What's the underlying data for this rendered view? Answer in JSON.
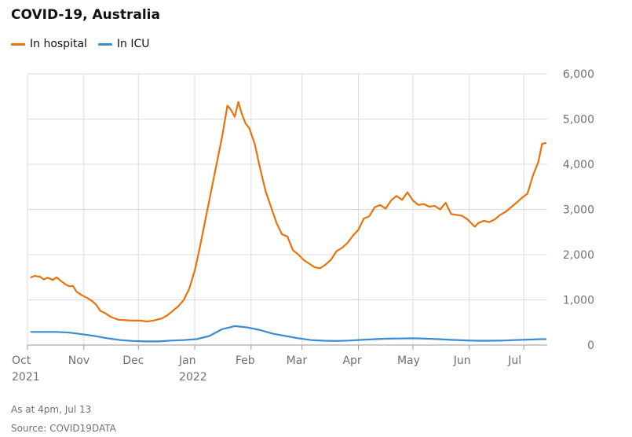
{
  "title": "COVID-19, Australia",
  "legend": [
    {
      "label": "In hospital",
      "color": "#e8730c"
    },
    {
      "label": "In ICU",
      "color": "#3a8ad4"
    }
  ],
  "footnote": "As at 4pm, Jul 13",
  "source": "Source: COVID19DATA",
  "chart_data": {
    "type": "line",
    "title": "COVID-19, Australia",
    "xlabel": "",
    "ylabel": "",
    "x_range": [
      "2021-10-01",
      "2022-07-13"
    ],
    "ylim": [
      0,
      6000
    ],
    "y_ticks": [
      0,
      1000,
      2000,
      3000,
      4000,
      5000,
      6000
    ],
    "y_tick_labels": [
      "0",
      "1,000",
      "2,000",
      "3,000",
      "4,000",
      "5,000",
      "6,000"
    ],
    "y_axis_side": "right",
    "grid": true,
    "legend_position": "top-left",
    "x_ticks": [
      {
        "date": "2021-10-01",
        "label": "Oct",
        "year": "2021"
      },
      {
        "date": "2021-11-01",
        "label": "Nov",
        "year": ""
      },
      {
        "date": "2021-12-01",
        "label": "Dec",
        "year": ""
      },
      {
        "date": "2022-01-01",
        "label": "Jan",
        "year": "2022"
      },
      {
        "date": "2022-02-01",
        "label": "Feb",
        "year": ""
      },
      {
        "date": "2022-03-01",
        "label": "Mar",
        "year": ""
      },
      {
        "date": "2022-04-01",
        "label": "Apr",
        "year": ""
      },
      {
        "date": "2022-05-01",
        "label": "May",
        "year": ""
      },
      {
        "date": "2022-06-01",
        "label": "Jun",
        "year": ""
      },
      {
        "date": "2022-07-01",
        "label": "Jul",
        "year": ""
      }
    ],
    "series": [
      {
        "name": "In hospital",
        "color": "#e8730c",
        "points": [
          [
            "2021-10-03",
            1500
          ],
          [
            "2021-10-05",
            1530
          ],
          [
            "2021-10-08",
            1510
          ],
          [
            "2021-10-10",
            1450
          ],
          [
            "2021-10-12",
            1490
          ],
          [
            "2021-10-15",
            1440
          ],
          [
            "2021-10-17",
            1500
          ],
          [
            "2021-10-19",
            1430
          ],
          [
            "2021-10-22",
            1340
          ],
          [
            "2021-10-24",
            1300
          ],
          [
            "2021-10-26",
            1310
          ],
          [
            "2021-10-28",
            1180
          ],
          [
            "2021-10-31",
            1100
          ],
          [
            "2021-11-03",
            1040
          ],
          [
            "2021-11-06",
            960
          ],
          [
            "2021-11-08",
            880
          ],
          [
            "2021-11-10",
            760
          ],
          [
            "2021-11-13",
            700
          ],
          [
            "2021-11-16",
            620
          ],
          [
            "2021-11-20",
            560
          ],
          [
            "2021-11-24",
            550
          ],
          [
            "2021-11-28",
            540
          ],
          [
            "2021-12-02",
            540
          ],
          [
            "2021-12-06",
            520
          ],
          [
            "2021-12-10",
            550
          ],
          [
            "2021-12-14",
            590
          ],
          [
            "2021-12-17",
            660
          ],
          [
            "2021-12-20",
            760
          ],
          [
            "2021-12-23",
            860
          ],
          [
            "2021-12-26",
            1000
          ],
          [
            "2021-12-29",
            1250
          ],
          [
            "2022-01-01",
            1650
          ],
          [
            "2022-01-04",
            2200
          ],
          [
            "2022-01-07",
            2800
          ],
          [
            "2022-01-10",
            3400
          ],
          [
            "2022-01-13",
            4000
          ],
          [
            "2022-01-16",
            4600
          ],
          [
            "2022-01-19",
            5300
          ],
          [
            "2022-01-21",
            5200
          ],
          [
            "2022-01-23",
            5050
          ],
          [
            "2022-01-25",
            5380
          ],
          [
            "2022-01-27",
            5100
          ],
          [
            "2022-01-29",
            4900
          ],
          [
            "2022-01-31",
            4800
          ],
          [
            "2022-02-03",
            4450
          ],
          [
            "2022-02-06",
            3900
          ],
          [
            "2022-02-09",
            3400
          ],
          [
            "2022-02-12",
            3050
          ],
          [
            "2022-02-15",
            2700
          ],
          [
            "2022-02-18",
            2450
          ],
          [
            "2022-02-21",
            2400
          ],
          [
            "2022-02-24",
            2100
          ],
          [
            "2022-02-27",
            2000
          ],
          [
            "2022-03-02",
            1880
          ],
          [
            "2022-03-05",
            1800
          ],
          [
            "2022-03-08",
            1720
          ],
          [
            "2022-03-11",
            1700
          ],
          [
            "2022-03-14",
            1780
          ],
          [
            "2022-03-17",
            1890
          ],
          [
            "2022-03-20",
            2080
          ],
          [
            "2022-03-23",
            2150
          ],
          [
            "2022-03-26",
            2260
          ],
          [
            "2022-03-29",
            2420
          ],
          [
            "2022-04-01",
            2550
          ],
          [
            "2022-04-04",
            2800
          ],
          [
            "2022-04-07",
            2850
          ],
          [
            "2022-04-10",
            3050
          ],
          [
            "2022-04-13",
            3100
          ],
          [
            "2022-04-16",
            3020
          ],
          [
            "2022-04-19",
            3200
          ],
          [
            "2022-04-22",
            3300
          ],
          [
            "2022-04-25",
            3210
          ],
          [
            "2022-04-28",
            3380
          ],
          [
            "2022-05-01",
            3200
          ],
          [
            "2022-05-04",
            3100
          ],
          [
            "2022-05-07",
            3120
          ],
          [
            "2022-05-10",
            3060
          ],
          [
            "2022-05-13",
            3080
          ],
          [
            "2022-05-16",
            3000
          ],
          [
            "2022-05-19",
            3150
          ],
          [
            "2022-05-22",
            2900
          ],
          [
            "2022-05-25",
            2880
          ],
          [
            "2022-05-28",
            2860
          ],
          [
            "2022-05-31",
            2780
          ],
          [
            "2022-06-02",
            2700
          ],
          [
            "2022-06-04",
            2620
          ],
          [
            "2022-06-06",
            2700
          ],
          [
            "2022-06-09",
            2750
          ],
          [
            "2022-06-12",
            2720
          ],
          [
            "2022-06-15",
            2780
          ],
          [
            "2022-06-18",
            2880
          ],
          [
            "2022-06-21",
            2950
          ],
          [
            "2022-06-24",
            3050
          ],
          [
            "2022-06-27",
            3150
          ],
          [
            "2022-06-30",
            3260
          ],
          [
            "2022-07-03",
            3350
          ],
          [
            "2022-07-06",
            3750
          ],
          [
            "2022-07-09",
            4050
          ],
          [
            "2022-07-11",
            4450
          ],
          [
            "2022-07-13",
            4470
          ]
        ]
      },
      {
        "name": "In ICU",
        "color": "#3a8ad4",
        "points": [
          [
            "2021-10-03",
            290
          ],
          [
            "2021-10-10",
            290
          ],
          [
            "2021-10-17",
            290
          ],
          [
            "2021-10-24",
            275
          ],
          [
            "2021-10-31",
            240
          ],
          [
            "2021-11-07",
            200
          ],
          [
            "2021-11-14",
            150
          ],
          [
            "2021-11-21",
            110
          ],
          [
            "2021-11-28",
            90
          ],
          [
            "2021-12-05",
            80
          ],
          [
            "2021-12-12",
            80
          ],
          [
            "2021-12-19",
            100
          ],
          [
            "2021-12-26",
            110
          ],
          [
            "2022-01-02",
            130
          ],
          [
            "2022-01-09",
            200
          ],
          [
            "2022-01-16",
            350
          ],
          [
            "2022-01-23",
            420
          ],
          [
            "2022-01-30",
            390
          ],
          [
            "2022-02-06",
            330
          ],
          [
            "2022-02-13",
            250
          ],
          [
            "2022-02-20",
            200
          ],
          [
            "2022-02-27",
            150
          ],
          [
            "2022-03-06",
            110
          ],
          [
            "2022-03-13",
            95
          ],
          [
            "2022-03-20",
            90
          ],
          [
            "2022-03-27",
            100
          ],
          [
            "2022-04-03",
            115
          ],
          [
            "2022-04-10",
            130
          ],
          [
            "2022-04-17",
            140
          ],
          [
            "2022-04-24",
            145
          ],
          [
            "2022-05-01",
            150
          ],
          [
            "2022-05-08",
            140
          ],
          [
            "2022-05-15",
            130
          ],
          [
            "2022-05-22",
            115
          ],
          [
            "2022-05-29",
            105
          ],
          [
            "2022-06-05",
            95
          ],
          [
            "2022-06-12",
            95
          ],
          [
            "2022-06-19",
            100
          ],
          [
            "2022-06-26",
            110
          ],
          [
            "2022-07-03",
            120
          ],
          [
            "2022-07-10",
            130
          ],
          [
            "2022-07-13",
            130
          ]
        ]
      }
    ]
  }
}
